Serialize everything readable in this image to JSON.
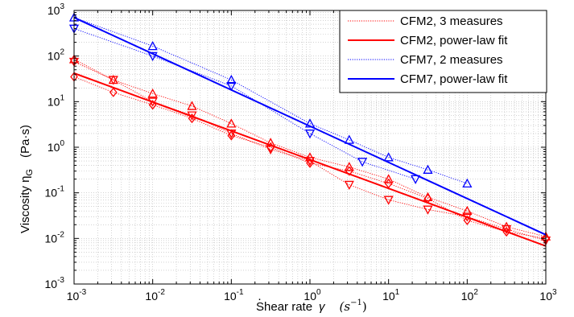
{
  "chart_data": {
    "type": "line",
    "x_scale": "log",
    "y_scale": "log",
    "xlim": [
      0.001,
      1000
    ],
    "ylim": [
      0.001,
      1000
    ],
    "grid": true,
    "legend_position": "top-right",
    "xlabel": "Shear rate",
    "xlabel_symbol": "γ",
    "xlabel_unit": "(s",
    "xlabel_unit_exp": "−1",
    "xlabel_unit_close": ")",
    "ylabel": "Viscosity η",
    "ylabel_sub": "G",
    "ylabel_unit": "(Pa·s)",
    "x_ticks": [
      {
        "base": "10",
        "exp": "-3",
        "value": 0.001
      },
      {
        "base": "10",
        "exp": "-2",
        "value": 0.01
      },
      {
        "base": "10",
        "exp": "-1",
        "value": 0.1
      },
      {
        "base": "10",
        "exp": "0",
        "value": 1
      },
      {
        "base": "10",
        "exp": "1",
        "value": 10
      },
      {
        "base": "10",
        "exp": "2",
        "value": 100
      },
      {
        "base": "10",
        "exp": "3",
        "value": 1000
      }
    ],
    "y_ticks": [
      {
        "base": "10",
        "exp": "-3",
        "value": 0.001
      },
      {
        "base": "10",
        "exp": "-2",
        "value": 0.01
      },
      {
        "base": "10",
        "exp": "-1",
        "value": 0.1
      },
      {
        "base": "10",
        "exp": "0",
        "value": 1
      },
      {
        "base": "10",
        "exp": "1",
        "value": 10
      },
      {
        "base": "10",
        "exp": "2",
        "value": 100
      },
      {
        "base": "10",
        "exp": "3",
        "value": 1000
      }
    ],
    "series": [
      {
        "name": "CFM2, 3 measures",
        "color": "#ff0000",
        "style": "dotted",
        "runs": [
          {
            "marker": "triangle-up",
            "points": [
              [
                0.001,
                85
              ],
              [
                0.00316,
                30
              ],
              [
                0.01,
                15
              ],
              [
                0.0316,
                8
              ],
              [
                0.1,
                3.3
              ],
              [
                0.316,
                1.25
              ],
              [
                1,
                0.6
              ],
              [
                3.16,
                0.37
              ],
              [
                10,
                0.2
              ],
              [
                31.6,
                0.08
              ],
              [
                100,
                0.04
              ],
              [
                316,
                0.018
              ],
              [
                1000,
                0.011
              ]
            ]
          },
          {
            "marker": "triangle-down",
            "points": [
              [
                0.001,
                75
              ],
              [
                0.00316,
                30
              ],
              [
                0.01,
                10
              ],
              [
                0.0316,
                5
              ],
              [
                0.1,
                2
              ],
              [
                0.316,
                0.9
              ],
              [
                1,
                0.5
              ],
              [
                3.16,
                0.15
              ],
              [
                10,
                0.07
              ],
              [
                31.6,
                0.043
              ],
              [
                100,
                0.03
              ],
              [
                316,
                0.016
              ],
              [
                1000,
                0.009
              ]
            ]
          },
          {
            "marker": "diamond",
            "points": [
              [
                0.001,
                35
              ],
              [
                0.00316,
                16
              ],
              [
                0.01,
                8.5
              ],
              [
                0.0316,
                4.3
              ],
              [
                0.1,
                1.8
              ],
              [
                0.316,
                1
              ],
              [
                1,
                0.45
              ],
              [
                3.16,
                0.3
              ],
              [
                10,
                0.16
              ],
              [
                31.6,
                0.075
              ],
              [
                100,
                0.025
              ],
              [
                316,
                0.014
              ],
              [
                1000,
                0.01
              ]
            ]
          }
        ]
      },
      {
        "name": "CFM2, power-law fit",
        "color": "#ff0000",
        "style": "solid",
        "points": [
          [
            0.001,
            42
          ],
          [
            1000,
            0.0068
          ]
        ]
      },
      {
        "name": "CFM7, 2 measures",
        "color": "#0000ff",
        "style": "dotted",
        "runs": [
          {
            "marker": "triangle-up",
            "points": [
              [
                0.001,
                700
              ],
              [
                0.01,
                165
              ],
              [
                0.1,
                30
              ],
              [
                1,
                3.3
              ],
              [
                3.16,
                1.45
              ],
              [
                10,
                0.6
              ],
              [
                31.6,
                0.32
              ],
              [
                100,
                0.16
              ]
            ]
          },
          {
            "marker": "triangle-down",
            "points": [
              [
                0.001,
                400
              ],
              [
                0.01,
                100
              ],
              [
                0.1,
                22
              ],
              [
                1,
                2
              ],
              [
                4.64,
                0.48
              ],
              [
                22,
                0.2
              ]
            ]
          }
        ]
      },
      {
        "name": "CFM7, power-law fit",
        "color": "#0000ff",
        "style": "solid",
        "points": [
          [
            0.001,
            700
          ],
          [
            1000,
            0.012
          ]
        ]
      }
    ]
  }
}
